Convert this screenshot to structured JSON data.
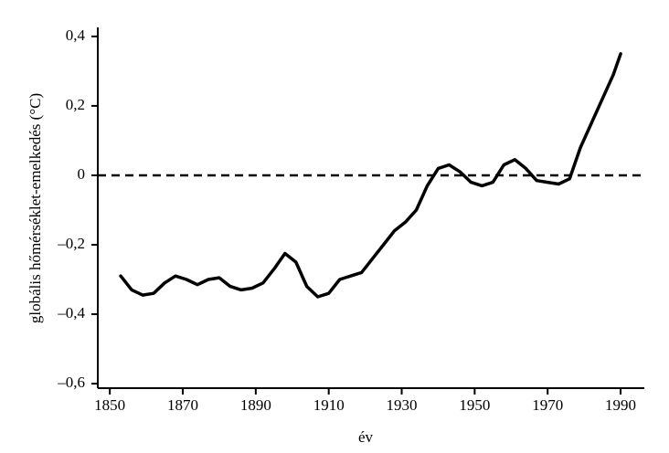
{
  "chart_data": {
    "type": "line",
    "xlabel": "év",
    "ylabel": "globális hőmérséklet-emelkedés (°C)",
    "x": [
      1853,
      1856,
      1859,
      1862,
      1865,
      1868,
      1871,
      1874,
      1877,
      1880,
      1883,
      1886,
      1889,
      1892,
      1895,
      1898,
      1901,
      1904,
      1907,
      1910,
      1913,
      1916,
      1919,
      1922,
      1925,
      1928,
      1931,
      1934,
      1937,
      1940,
      1943,
      1946,
      1949,
      1952,
      1955,
      1958,
      1961,
      1964,
      1967,
      1970,
      1973,
      1976,
      1979,
      1982,
      1985,
      1988,
      1990
    ],
    "values": [
      -0.29,
      -0.33,
      -0.345,
      -0.34,
      -0.31,
      -0.29,
      -0.3,
      -0.315,
      -0.3,
      -0.295,
      -0.32,
      -0.33,
      -0.325,
      -0.31,
      -0.27,
      -0.225,
      -0.25,
      -0.32,
      -0.35,
      -0.34,
      -0.3,
      -0.29,
      -0.28,
      -0.24,
      -0.2,
      -0.16,
      -0.135,
      -0.1,
      -0.03,
      0.02,
      0.03,
      0.01,
      -0.02,
      -0.03,
      -0.02,
      0.03,
      0.045,
      0.02,
      -0.015,
      -0.02,
      -0.025,
      -0.01,
      0.08,
      0.15,
      0.22,
      0.29,
      0.35
    ],
    "color": "#000000",
    "reference_line": 0,
    "xlim": [
      1846.7,
      1996.5
    ],
    "xticks": [
      1850,
      1870,
      1890,
      1910,
      1930,
      1950,
      1970,
      1990
    ],
    "ylim": [
      -0.613,
      0.426
    ],
    "yticks": [
      {
        "value": 0.4,
        "label": "0,4"
      },
      {
        "value": 0.2,
        "label": "0,2"
      },
      0,
      {
        "value": -0.2,
        "label": "–0,2"
      },
      {
        "value": -0.4,
        "label": "–0,4"
      },
      {
        "value": -0.6,
        "label": "–0,6"
      }
    ]
  }
}
